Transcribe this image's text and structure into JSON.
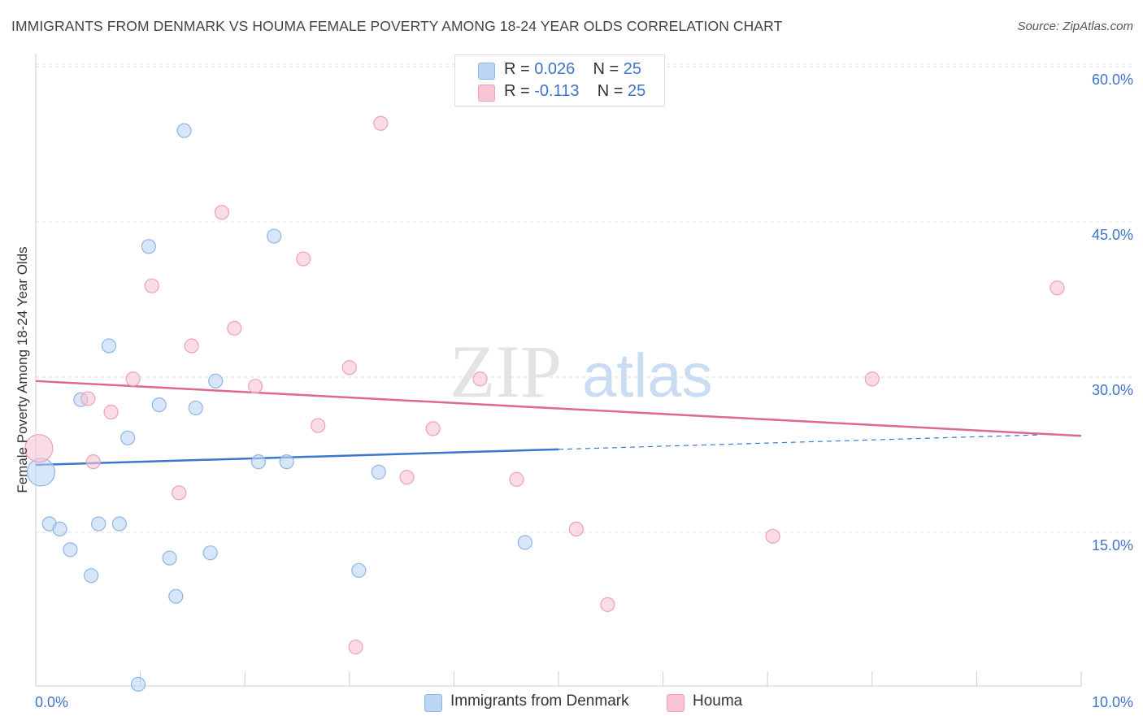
{
  "header": {
    "title": "IMMIGRANTS FROM DENMARK VS HOUMA FEMALE POVERTY AMONG 18-24 YEAR OLDS CORRELATION CHART",
    "source": "Source: ZipAtlas.com"
  },
  "watermark": {
    "zip": "ZIP",
    "atlas": "atlas"
  },
  "legend": {
    "denmark": {
      "r_label": "R = ",
      "r_value": "0.026",
      "n_label": "N = ",
      "n_value": "25"
    },
    "houma": {
      "r_label": "R = ",
      "r_value": "-0.113",
      "n_label": "N = ",
      "n_value": "25"
    }
  },
  "chart_data": {
    "type": "scatter",
    "title": "IMMIGRANTS FROM DENMARK VS HOUMA FEMALE POVERTY AMONG 18-24 YEAR OLDS CORRELATION CHART",
    "xlabel": "",
    "ylabel": "Female Poverty Among 18-24 Year Olds",
    "xlim": [
      0,
      10
    ],
    "ylim": [
      0,
      60
    ],
    "x_ticks": [
      {
        "value": 0,
        "label": "0.0%"
      },
      {
        "value": 10,
        "label": "10.0%"
      }
    ],
    "y_ticks": [
      {
        "value": 15,
        "label": "15.0%"
      },
      {
        "value": 30,
        "label": "30.0%"
      },
      {
        "value": 45,
        "label": "45.0%"
      },
      {
        "value": 60,
        "label": "60.0%"
      }
    ],
    "grid": true,
    "legend_position": "top-center",
    "colors": {
      "denmark": "#3a78d0",
      "denmark_fill": "#bcd5f5",
      "houma": "#e06890",
      "houma_fill": "#f9c4d3"
    },
    "series": [
      {
        "name": "Immigrants from Denmark",
        "r": 0.026,
        "n": 25,
        "trend": {
          "x0": 0,
          "y0": 22.7,
          "x1": 5.0,
          "y1": 24.2,
          "dashed_to_x": 9.6,
          "dashed_to_y": 25.6
        },
        "points": [
          {
            "x": 0.05,
            "y": 22.0,
            "big": true
          },
          {
            "x": 0.13,
            "y": 17.0
          },
          {
            "x": 0.23,
            "y": 16.5
          },
          {
            "x": 0.33,
            "y": 14.5
          },
          {
            "x": 0.43,
            "y": 29.0
          },
          {
            "x": 0.53,
            "y": 12.0
          },
          {
            "x": 0.6,
            "y": 17.0
          },
          {
            "x": 0.7,
            "y": 34.2
          },
          {
            "x": 0.8,
            "y": 17.0
          },
          {
            "x": 0.88,
            "y": 25.3
          },
          {
            "x": 0.98,
            "y": 1.5
          },
          {
            "x": 1.08,
            "y": 43.8
          },
          {
            "x": 1.18,
            "y": 28.5
          },
          {
            "x": 1.28,
            "y": 13.7
          },
          {
            "x": 1.34,
            "y": 10.0
          },
          {
            "x": 1.42,
            "y": 55.0
          },
          {
            "x": 1.53,
            "y": 28.2
          },
          {
            "x": 1.67,
            "y": 14.2
          },
          {
            "x": 1.72,
            "y": 30.8
          },
          {
            "x": 2.13,
            "y": 23.0
          },
          {
            "x": 2.28,
            "y": 44.8
          },
          {
            "x": 2.4,
            "y": 23.0
          },
          {
            "x": 3.09,
            "y": 12.5
          },
          {
            "x": 3.28,
            "y": 22.0
          },
          {
            "x": 4.68,
            "y": 15.2
          }
        ]
      },
      {
        "name": "Houma",
        "r": -0.113,
        "n": 25,
        "trend": {
          "x0": 0,
          "y0": 30.8,
          "x1": 10.0,
          "y1": 25.5
        },
        "points": [
          {
            "x": 0.03,
            "y": 24.3,
            "big": true
          },
          {
            "x": 0.5,
            "y": 29.1
          },
          {
            "x": 0.55,
            "y": 23.0
          },
          {
            "x": 0.72,
            "y": 27.8
          },
          {
            "x": 0.93,
            "y": 31.0
          },
          {
            "x": 1.11,
            "y": 40.0
          },
          {
            "x": 1.37,
            "y": 20.0
          },
          {
            "x": 1.49,
            "y": 34.2
          },
          {
            "x": 1.78,
            "y": 47.1
          },
          {
            "x": 1.9,
            "y": 35.9
          },
          {
            "x": 2.1,
            "y": 30.3
          },
          {
            "x": 2.56,
            "y": 42.6
          },
          {
            "x": 2.7,
            "y": 26.5
          },
          {
            "x": 3.0,
            "y": 32.1
          },
          {
            "x": 3.06,
            "y": 5.1
          },
          {
            "x": 3.3,
            "y": 55.7
          },
          {
            "x": 3.55,
            "y": 21.5
          },
          {
            "x": 3.8,
            "y": 26.2
          },
          {
            "x": 4.25,
            "y": 31.0
          },
          {
            "x": 4.6,
            "y": 21.3
          },
          {
            "x": 5.17,
            "y": 16.5
          },
          {
            "x": 5.47,
            "y": 9.2
          },
          {
            "x": 7.05,
            "y": 15.8
          },
          {
            "x": 8.0,
            "y": 31.0
          },
          {
            "x": 9.77,
            "y": 39.8
          }
        ]
      }
    ]
  },
  "bottom_legend": {
    "denmark": "Immigrants from Denmark",
    "houma": "Houma"
  }
}
